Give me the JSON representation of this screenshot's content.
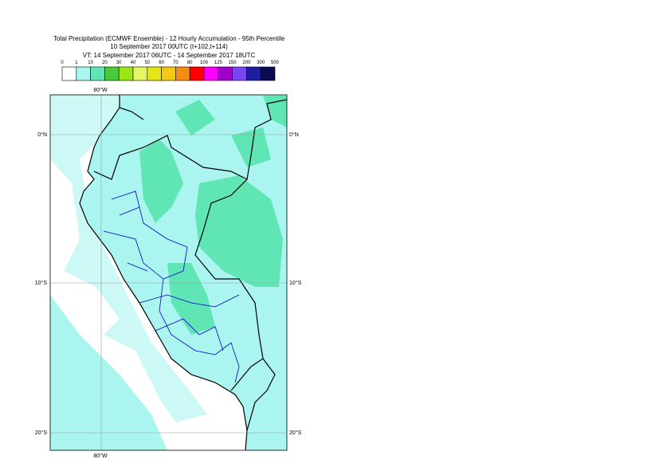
{
  "header": {
    "title": [
      "Total Precipitation (ECMWF Ensemble) - 12 Hourly Accumulation - 95th Percentile",
      "10 September 2017 00UTC (t+102,t+114)",
      "VT: 14 September 2017 06UTC - 14 September 2017 18UTC"
    ]
  },
  "legend": {
    "labels": [
      0,
      1,
      10,
      20,
      30,
      40,
      50,
      60,
      70,
      80,
      100,
      125,
      150,
      200,
      300,
      500
    ],
    "colors": [
      "#ffffff",
      "#aaf5f0",
      "#5fe6b4",
      "#4cc83c",
      "#9be614",
      "#e6f564",
      "#e6e614",
      "#f5c814",
      "#f58c14",
      "#ff0000",
      "#ff00ff",
      "#a000c8",
      "#7846f0",
      "#1e1ea0",
      "#0a0a50"
    ]
  },
  "map": {
    "lon_labels": [
      "80°W"
    ],
    "lat_labels": [
      "0°N",
      "10°S",
      "20°S"
    ]
  }
}
